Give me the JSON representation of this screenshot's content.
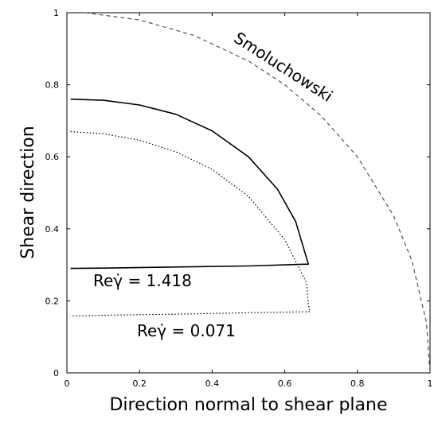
{
  "chart_data": {
    "type": "line",
    "title": "",
    "xlabel": "Direction normal to shear plane",
    "ylabel": "Shear direction",
    "xlim": [
      0,
      1
    ],
    "ylim": [
      0,
      1
    ],
    "xticks": [
      "0",
      "0.2",
      "0.4",
      "0.6",
      "0.8",
      "1"
    ],
    "yticks": [
      "0",
      "0.2",
      "0.4",
      "0.6",
      "0.8",
      "1"
    ],
    "grid": false,
    "annotations": [
      {
        "text": "Smoluchowski",
        "series": "smoluchowski"
      },
      {
        "text": "Reγ̇ = 1.418",
        "series": "re_1418"
      },
      {
        "text": "Reγ̇ = 0.071",
        "series": "re_0071"
      }
    ],
    "series": [
      {
        "key": "smoluchowski",
        "style": "dashed",
        "color": "#555555",
        "x": [
          0.05,
          0.2,
          0.35,
          0.5,
          0.6,
          0.7,
          0.8,
          0.9,
          0.95,
          0.99,
          1.0
        ],
        "y": [
          1.0,
          0.98,
          0.937,
          0.866,
          0.8,
          0.714,
          0.6,
          0.436,
          0.312,
          0.141,
          0.0
        ]
      },
      {
        "key": "re_1418",
        "style": "solid",
        "color": "#000000",
        "x": [
          0.01,
          0.1,
          0.2,
          0.3,
          0.4,
          0.5,
          0.58,
          0.63,
          0.665,
          0.5,
          0.3,
          0.1,
          0.01
        ],
        "y": [
          0.76,
          0.757,
          0.744,
          0.718,
          0.672,
          0.6,
          0.51,
          0.42,
          0.302,
          0.297,
          0.294,
          0.291,
          0.29
        ]
      },
      {
        "key": "re_0071",
        "style": "dotted",
        "color": "#000000",
        "x": [
          0.01,
          0.1,
          0.2,
          0.3,
          0.4,
          0.5,
          0.6,
          0.66,
          0.665,
          0.67,
          0.5,
          0.3,
          0.1,
          0.01
        ],
        "y": [
          0.67,
          0.664,
          0.646,
          0.614,
          0.565,
          0.49,
          0.37,
          0.25,
          0.19,
          0.17,
          0.167,
          0.163,
          0.16,
          0.158
        ]
      }
    ]
  }
}
